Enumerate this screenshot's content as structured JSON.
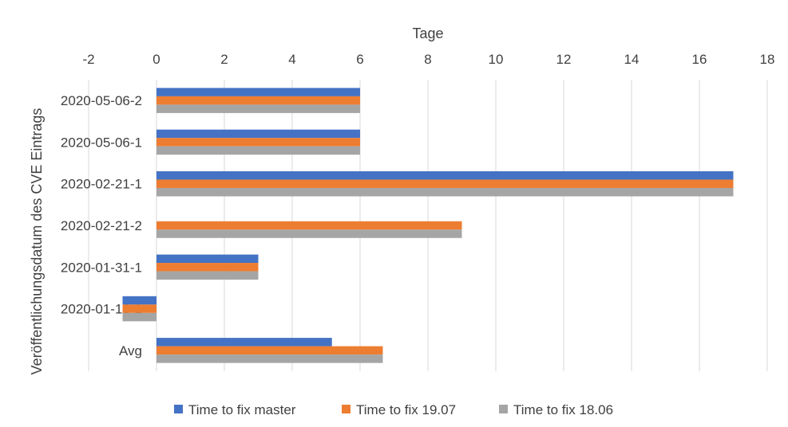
{
  "chart_data": {
    "type": "bar",
    "orientation": "horizontal",
    "xlabel": "Tage",
    "ylabel": "Veröffentlichungsdatum des CVE Eintrags",
    "xlim": [
      -2,
      18
    ],
    "xticks": [
      -2,
      0,
      2,
      4,
      6,
      8,
      10,
      12,
      14,
      16,
      18
    ],
    "grid": true,
    "legend_position": "bottom",
    "categories": [
      "2020-05-06-2",
      "2020-05-06-1",
      "2020-02-21-1",
      "2020-02-21-2",
      "2020-01-31-1",
      "2020-01-13-1",
      "Avg"
    ],
    "series": [
      {
        "name": "Time to fix master",
        "color": "#4472C4",
        "values": [
          6,
          6,
          17,
          null,
          3,
          -1,
          5.17
        ]
      },
      {
        "name": "Time to fix 19.07",
        "color": "#ED7D31",
        "values": [
          6,
          6,
          17,
          9,
          3,
          -1,
          6.67
        ]
      },
      {
        "name": "Time to fix 18.06",
        "color": "#A5A5A5",
        "values": [
          6,
          6,
          17,
          9,
          3,
          -1,
          6.67
        ]
      }
    ]
  }
}
